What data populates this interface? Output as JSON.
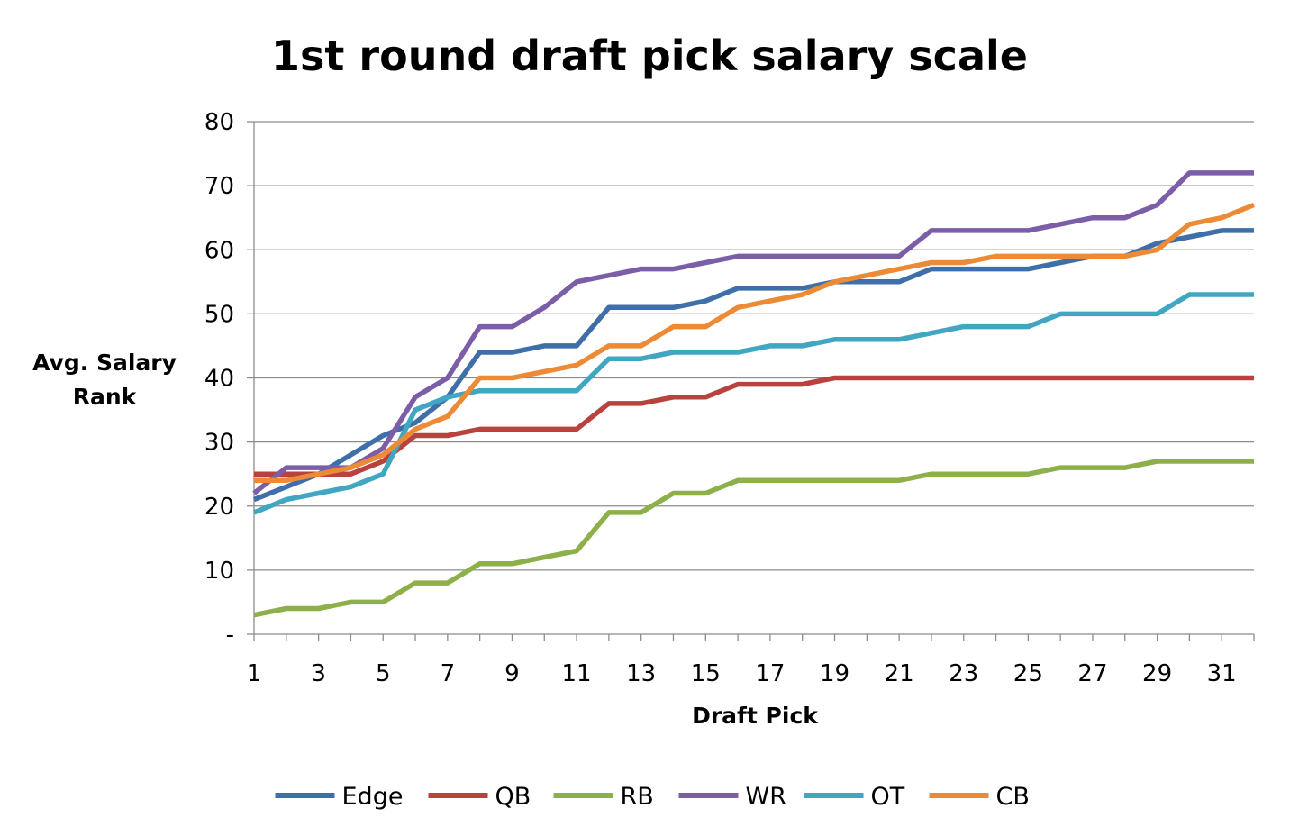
{
  "chart_data": {
    "type": "line",
    "title": "1st round draft pick salary scale",
    "xlabel": "Draft Pick",
    "ylabel": [
      "Avg. Salary",
      "Rank"
    ],
    "x": [
      1,
      2,
      3,
      4,
      5,
      6,
      7,
      8,
      9,
      10,
      11,
      12,
      13,
      14,
      15,
      16,
      17,
      18,
      19,
      20,
      21,
      22,
      23,
      24,
      25,
      26,
      27,
      28,
      29,
      30,
      31,
      32
    ],
    "x_tick_labels": [
      "1",
      "3",
      "5",
      "7",
      "9",
      "11",
      "13",
      "15",
      "17",
      "19",
      "21",
      "23",
      "25",
      "27",
      "29",
      "31"
    ],
    "y_tick_labels": [
      "-",
      "10",
      "20",
      "30",
      "40",
      "50",
      "60",
      "70",
      "80"
    ],
    "ylim": [
      0,
      80
    ],
    "grid": "horizontal",
    "legend_position": "bottom",
    "series": [
      {
        "name": "Edge",
        "color": "#3F6FA8",
        "values": [
          21,
          23,
          25,
          28,
          31,
          33,
          37,
          44,
          44,
          45,
          45,
          51,
          51,
          51,
          52,
          54,
          54,
          54,
          55,
          55,
          55,
          57,
          57,
          57,
          57,
          58,
          59,
          59,
          61,
          62,
          63,
          63
        ]
      },
      {
        "name": "QB",
        "color": "#B8433E",
        "values": [
          25,
          25,
          25,
          25,
          27,
          31,
          31,
          32,
          32,
          32,
          32,
          36,
          36,
          37,
          37,
          39,
          39,
          39,
          40,
          40,
          40,
          40,
          40,
          40,
          40,
          40,
          40,
          40,
          40,
          40,
          40,
          40
        ]
      },
      {
        "name": "RB",
        "color": "#8DB04A",
        "values": [
          3,
          4,
          4,
          5,
          5,
          8,
          8,
          11,
          11,
          12,
          13,
          19,
          19,
          22,
          22,
          24,
          24,
          24,
          24,
          24,
          24,
          25,
          25,
          25,
          25,
          26,
          26,
          26,
          27,
          27,
          27,
          27
        ]
      },
      {
        "name": "WR",
        "color": "#7B5EA7",
        "values": [
          22,
          26,
          26,
          26,
          29,
          37,
          40,
          48,
          48,
          51,
          55,
          56,
          57,
          57,
          58,
          59,
          59,
          59,
          59,
          59,
          59,
          63,
          63,
          63,
          63,
          64,
          65,
          65,
          67,
          72,
          72,
          72
        ]
      },
      {
        "name": "OT",
        "color": "#40A6C2",
        "values": [
          19,
          21,
          22,
          23,
          25,
          35,
          37,
          38,
          38,
          38,
          38,
          43,
          43,
          44,
          44,
          44,
          45,
          45,
          46,
          46,
          46,
          47,
          48,
          48,
          48,
          50,
          50,
          50,
          50,
          53,
          53,
          53
        ]
      },
      {
        "name": "CB",
        "color": "#EC8A36",
        "values": [
          24,
          24,
          25,
          26,
          28,
          32,
          34,
          40,
          40,
          41,
          42,
          45,
          45,
          48,
          48,
          51,
          52,
          53,
          55,
          56,
          57,
          58,
          58,
          59,
          59,
          59,
          59,
          59,
          60,
          64,
          65,
          67
        ]
      }
    ]
  }
}
